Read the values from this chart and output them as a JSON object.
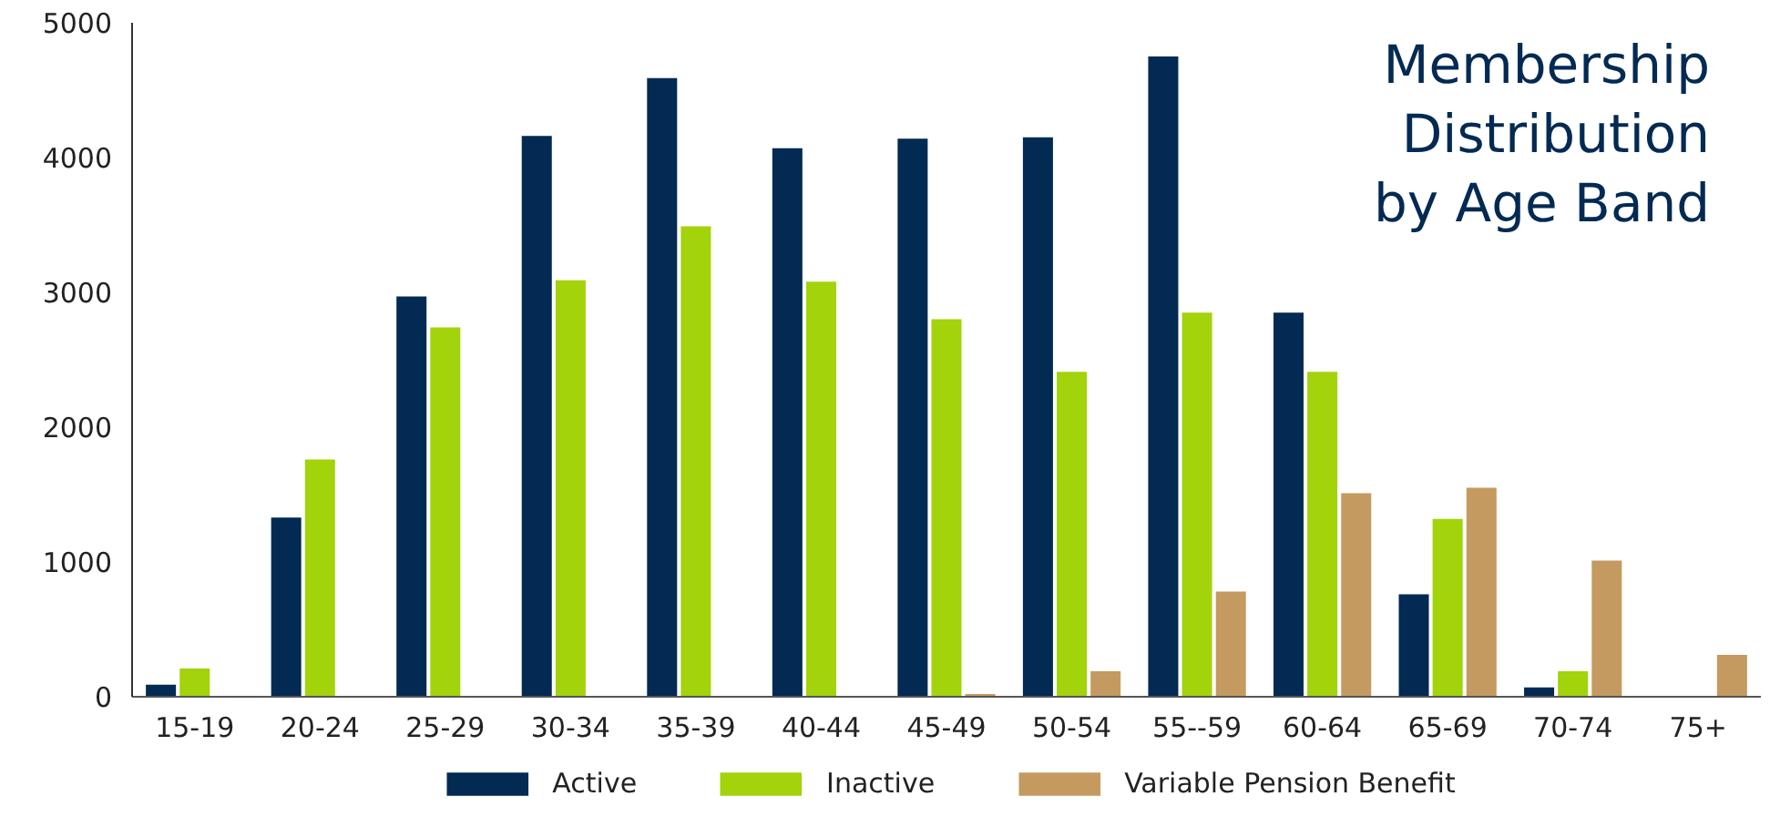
{
  "chart_data": {
    "type": "bar",
    "title": "Membership Distribution by Age Band",
    "categories": [
      "15-19",
      "20-24",
      "25-29",
      "30-34",
      "35-39",
      "40-44",
      "45-49",
      "50-54",
      "55--59",
      "60-64",
      "65-69",
      "70-74",
      "75+"
    ],
    "series": [
      {
        "name": "Active",
        "color": "#022a52",
        "values": [
          90,
          1330,
          2970,
          4160,
          4590,
          4070,
          4140,
          4150,
          4750,
          2850,
          760,
          70,
          0
        ]
      },
      {
        "name": "Inactive",
        "color": "#a2d30b",
        "values": [
          210,
          1760,
          2740,
          3090,
          3490,
          3080,
          2800,
          2410,
          2850,
          2410,
          1320,
          190,
          0
        ]
      },
      {
        "name": "Variable Pension Benefit",
        "color": "#c49a60",
        "values": [
          0,
          0,
          0,
          0,
          0,
          0,
          20,
          190,
          780,
          1510,
          1550,
          1010,
          310
        ]
      }
    ],
    "ylim": [
      0,
      5000
    ],
    "yticks": [
      0,
      1000,
      2000,
      3000,
      4000,
      5000
    ],
    "grid": false,
    "legend": "bottom"
  }
}
